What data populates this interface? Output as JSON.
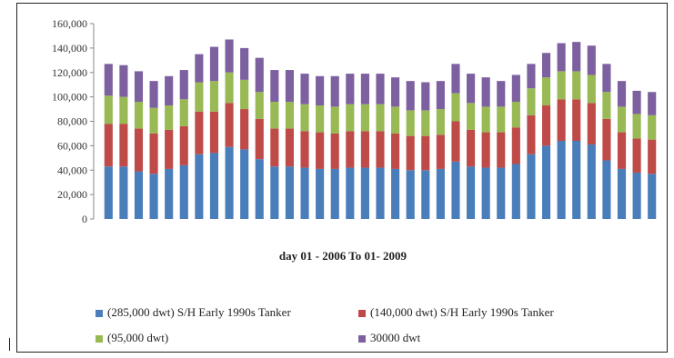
{
  "chart_data": {
    "type": "bar",
    "stacked": true,
    "title": "",
    "xlabel": "day 01 - 2006 To 01- 2009",
    "ylabel": "",
    "ylim": [
      0,
      160000
    ],
    "yticks": [
      "160,000",
      "140,000",
      "120,000",
      "100,000",
      "80,000",
      "60,000",
      "40,000",
      "20,000",
      "0"
    ],
    "legend_position": "bottom",
    "series": [
      {
        "name": "(285,000 dwt) S/H Early 1990s Tanker",
        "color": "#4a7ebb",
        "values": [
          43000,
          43000,
          39000,
          37000,
          41000,
          44000,
          53000,
          54000,
          59000,
          57000,
          49000,
          43000,
          43000,
          42000,
          41000,
          41000,
          42000,
          42000,
          42000,
          41000,
          40000,
          40000,
          41000,
          47000,
          43000,
          42000,
          42000,
          45000,
          53000,
          60000,
          64000,
          64000,
          61000,
          48000,
          41000,
          38000,
          37000
        ]
      },
      {
        "name": "(140,000 dwt) S/H Early 1990s Tanker",
        "color": "#be4b48",
        "values": [
          35000,
          35000,
          35000,
          33000,
          32000,
          32000,
          35000,
          34000,
          36000,
          33000,
          33000,
          31000,
          31000,
          30000,
          30000,
          29000,
          30000,
          30000,
          30000,
          29000,
          28000,
          28000,
          28000,
          33000,
          30000,
          29000,
          29000,
          30000,
          32000,
          33000,
          34000,
          34000,
          34000,
          34000,
          30000,
          28000,
          28000
        ]
      },
      {
        "name": "(95,000 dwt)",
        "color": "#98b954",
        "values": [
          23000,
          22000,
          22000,
          21000,
          20000,
          22000,
          24000,
          25000,
          25000,
          24000,
          22000,
          22000,
          22000,
          22000,
          22000,
          22000,
          22000,
          22000,
          22000,
          22000,
          21000,
          21000,
          21000,
          23000,
          22000,
          21000,
          21000,
          21000,
          22000,
          23000,
          23000,
          23000,
          23000,
          22000,
          21000,
          20000,
          20000
        ]
      },
      {
        "name": "30000 dwt",
        "color": "#7d60a0",
        "values": [
          26000,
          26000,
          25000,
          22000,
          24000,
          24000,
          23000,
          28000,
          27000,
          26000,
          28000,
          26000,
          26000,
          25000,
          24000,
          25000,
          25000,
          25000,
          25000,
          24000,
          24000,
          23000,
          23000,
          24000,
          24000,
          24000,
          21000,
          22000,
          20000,
          20000,
          23000,
          24000,
          24000,
          23000,
          21000,
          19000,
          19000
        ]
      }
    ]
  }
}
